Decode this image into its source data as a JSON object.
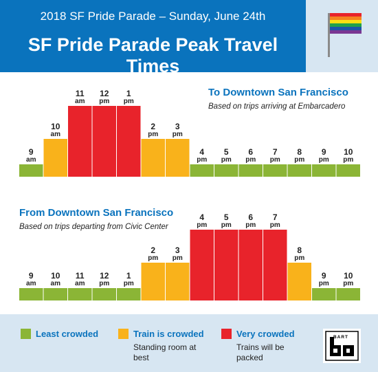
{
  "header": {
    "subtitle": "2018 SF Pride Parade – Sunday, June 24th",
    "title": "SF Pride Parade Peak Travel Times",
    "flag_colors": [
      "#e8232b",
      "#f58220",
      "#fbe113",
      "#21a24a",
      "#1b57a8",
      "#7a3793"
    ]
  },
  "chart_data": [
    {
      "type": "bar",
      "title": "To Downtown San Francisco",
      "subtitle": "Based on trips arriving at Embarcadero",
      "categories": [
        "9 am",
        "10 am",
        "11 am",
        "12 pm",
        "1 pm",
        "2 pm",
        "3 pm",
        "4 pm",
        "5 pm",
        "6 pm",
        "7 pm",
        "8 pm",
        "9 pm",
        "10 pm"
      ],
      "hours": [
        "9",
        "10",
        "11",
        "12",
        "1",
        "2",
        "3",
        "4",
        "5",
        "6",
        "7",
        "8",
        "9",
        "10"
      ],
      "periods": [
        "am",
        "am",
        "am",
        "pm",
        "pm",
        "pm",
        "pm",
        "pm",
        "pm",
        "pm",
        "pm",
        "pm",
        "pm",
        "pm"
      ],
      "crowding": [
        "least",
        "crowded",
        "very",
        "very",
        "very",
        "crowded",
        "crowded",
        "least",
        "least",
        "least",
        "least",
        "least",
        "least",
        "least"
      ]
    },
    {
      "type": "bar",
      "title": "From Downtown San Francisco",
      "subtitle": "Based on trips departing from Civic Center",
      "categories": [
        "9 am",
        "10 am",
        "11 am",
        "12 pm",
        "1 pm",
        "2 pm",
        "3 pm",
        "4 pm",
        "5 pm",
        "6 pm",
        "7 pm",
        "8 pm",
        "9 pm",
        "10 pm"
      ],
      "hours": [
        "9",
        "10",
        "11",
        "12",
        "1",
        "2",
        "3",
        "4",
        "5",
        "6",
        "7",
        "8",
        "9",
        "10"
      ],
      "periods": [
        "am",
        "am",
        "am",
        "pm",
        "pm",
        "pm",
        "pm",
        "pm",
        "pm",
        "pm",
        "pm",
        "pm",
        "pm",
        "pm"
      ],
      "crowding": [
        "least",
        "least",
        "least",
        "least",
        "least",
        "crowded",
        "crowded",
        "very",
        "very",
        "very",
        "very",
        "crowded",
        "least",
        "least"
      ]
    }
  ],
  "legend": {
    "least": {
      "label": "Least crowded",
      "desc": "",
      "color": "#8bb536"
    },
    "crowded": {
      "label": "Train is crowded",
      "desc": "Standing room at best",
      "color": "#f9b21b"
    },
    "very": {
      "label": "Very crowded",
      "desc": "Trains will be packed",
      "color": "#e8232b"
    }
  },
  "logo": {
    "text": "BART"
  }
}
